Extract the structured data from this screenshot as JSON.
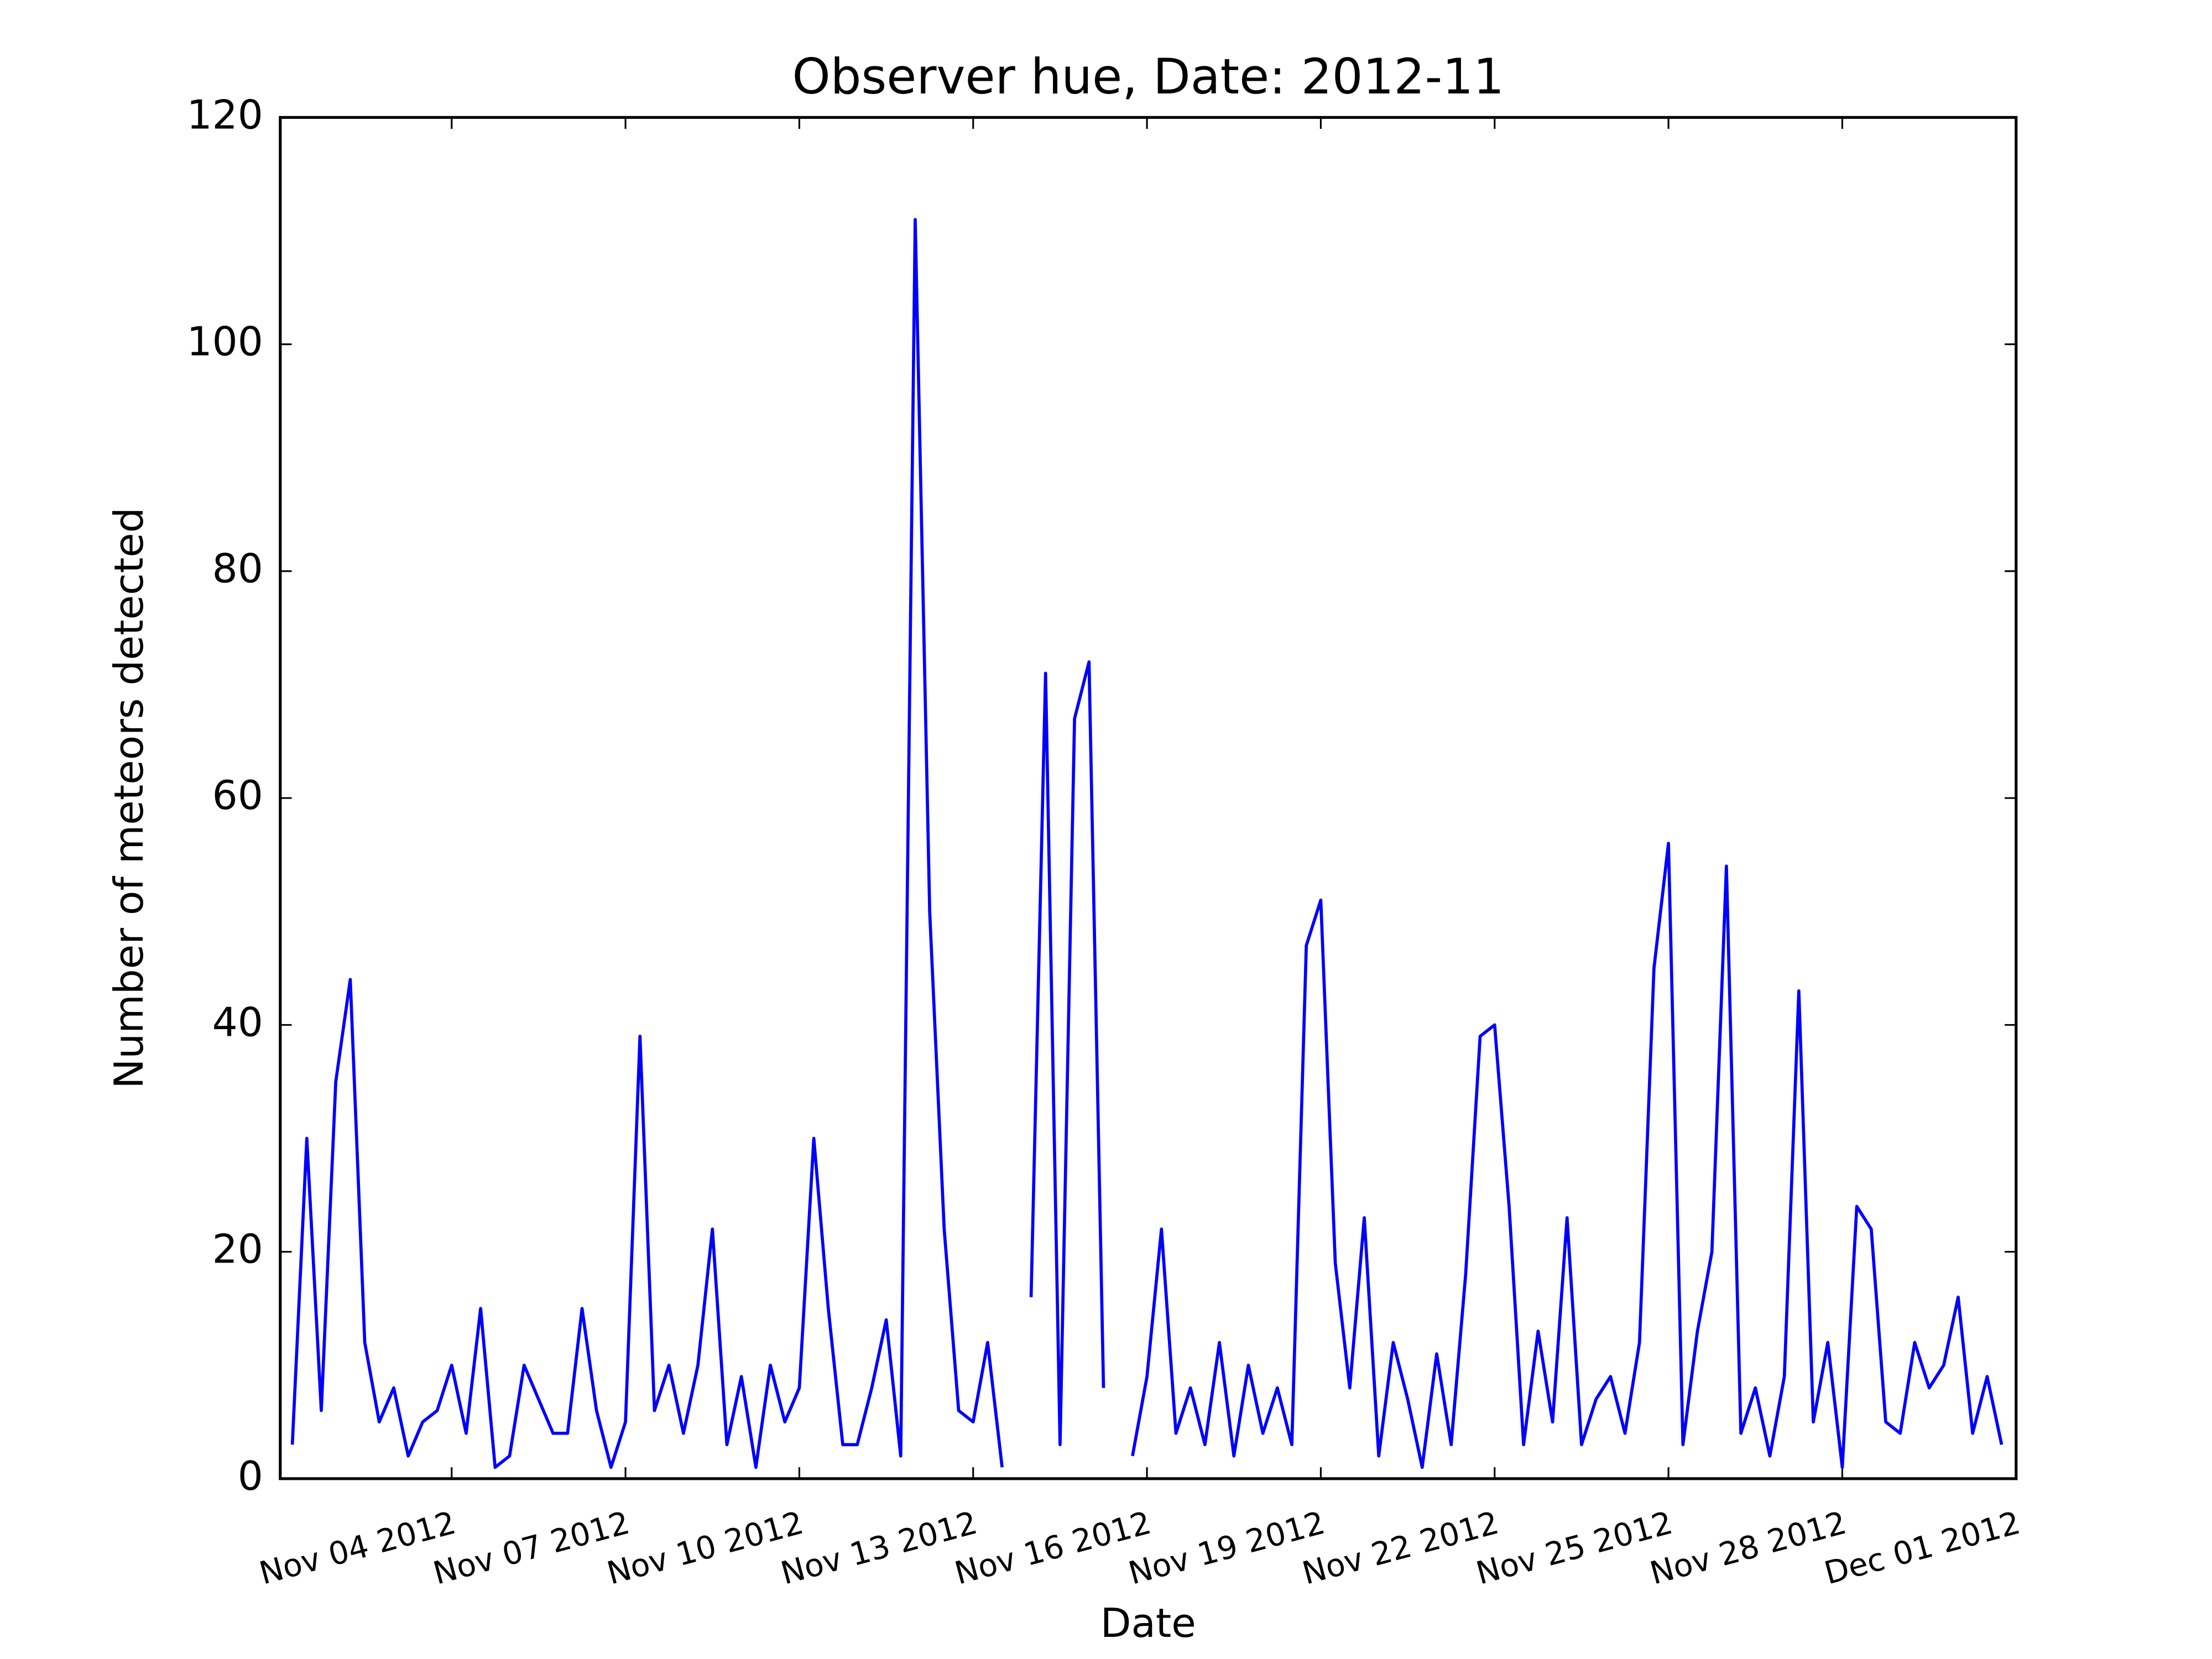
{
  "chart_data": {
    "type": "line",
    "title": "Observer hue, Date: 2012-11",
    "x_label": "Date",
    "y_label": "Number of meteors detected",
    "x": [
      "2012-11-01T06:00",
      "2012-11-01T12:00",
      "2012-11-01T18:00",
      "2012-11-02T00:00",
      "2012-11-02T06:00",
      "2012-11-02T12:00",
      "2012-11-02T18:00",
      "2012-11-03T00:00",
      "2012-11-03T06:00",
      "2012-11-03T12:00",
      "2012-11-03T18:00",
      "2012-11-04T00:00",
      "2012-11-04T06:00",
      "2012-11-04T12:00",
      "2012-11-04T18:00",
      "2012-11-05T00:00",
      "2012-11-05T06:00",
      "2012-11-05T12:00",
      "2012-11-05T18:00",
      "2012-11-06T00:00",
      "2012-11-06T06:00",
      "2012-11-06T12:00",
      "2012-11-06T18:00",
      "2012-11-07T00:00",
      "2012-11-07T06:00",
      "2012-11-07T12:00",
      "2012-11-07T18:00",
      "2012-11-08T00:00",
      "2012-11-08T06:00",
      "2012-11-08T12:00",
      "2012-11-08T18:00",
      "2012-11-09T00:00",
      "2012-11-09T06:00",
      "2012-11-09T12:00",
      "2012-11-09T18:00",
      "2012-11-10T00:00",
      "2012-11-10T06:00",
      "2012-11-10T12:00",
      "2012-11-10T18:00",
      "2012-11-11T00:00",
      "2012-11-11T06:00",
      "2012-11-11T12:00",
      "2012-11-11T18:00",
      "2012-11-12T00:00",
      "2012-11-12T06:00",
      "2012-11-12T12:00",
      "2012-11-12T18:00",
      "2012-11-13T00:00",
      "2012-11-13T06:00",
      "2012-11-13T12:00",
      "2012-11-13T18:00",
      "2012-11-14T00:00",
      "2012-11-14T06:00",
      "2012-11-14T12:00",
      "2012-11-14T18:00",
      "2012-11-15T00:00",
      "2012-11-15T06:00",
      "2012-11-15T12:00",
      "2012-11-15T18:00",
      "2012-11-16T00:00",
      "2012-11-16T06:00",
      "2012-11-16T12:00",
      "2012-11-16T18:00",
      "2012-11-17T00:00",
      "2012-11-17T06:00",
      "2012-11-17T12:00",
      "2012-11-17T18:00",
      "2012-11-18T00:00",
      "2012-11-18T06:00",
      "2012-11-18T12:00",
      "2012-11-18T18:00",
      "2012-11-19T00:00",
      "2012-11-19T06:00",
      "2012-11-19T12:00",
      "2012-11-19T18:00",
      "2012-11-20T00:00",
      "2012-11-20T06:00",
      "2012-11-20T12:00",
      "2012-11-20T18:00",
      "2012-11-21T00:00",
      "2012-11-21T06:00",
      "2012-11-21T12:00",
      "2012-11-21T18:00",
      "2012-11-22T00:00",
      "2012-11-22T06:00",
      "2012-11-22T12:00",
      "2012-11-22T18:00",
      "2012-11-23T00:00",
      "2012-11-23T06:00",
      "2012-11-23T12:00",
      "2012-11-23T18:00",
      "2012-11-24T00:00",
      "2012-11-24T06:00",
      "2012-11-24T12:00",
      "2012-11-24T18:00",
      "2012-11-25T00:00",
      "2012-11-25T06:00",
      "2012-11-25T12:00",
      "2012-11-25T18:00",
      "2012-11-26T00:00",
      "2012-11-26T06:00",
      "2012-11-26T12:00",
      "2012-11-26T18:00",
      "2012-11-27T00:00",
      "2012-11-27T06:00",
      "2012-11-27T12:00",
      "2012-11-27T18:00",
      "2012-11-28T00:00",
      "2012-11-28T06:00",
      "2012-11-28T12:00",
      "2012-11-28T18:00",
      "2012-11-29T00:00",
      "2012-11-29T06:00",
      "2012-11-29T12:00",
      "2012-11-29T18:00",
      "2012-11-30T00:00",
      "2012-11-30T06:00",
      "2012-11-30T12:00",
      "2012-11-30T18:00"
    ],
    "series": [
      {
        "color": "#0000ff",
        "values": [
          3,
          30,
          6,
          35,
          44,
          12,
          5,
          8,
          2,
          5,
          6,
          10,
          4,
          15,
          1,
          2,
          10,
          7,
          4,
          4,
          15,
          6,
          1,
          5,
          39,
          6,
          10,
          4,
          10,
          22,
          3,
          9,
          1,
          10,
          5,
          8,
          30,
          15,
          3,
          3,
          8,
          14,
          2,
          111,
          50,
          22,
          6,
          5,
          12,
          1,
          null,
          16,
          71,
          3,
          67,
          72,
          8,
          null,
          2,
          9,
          22,
          4,
          8,
          3,
          12,
          2,
          10,
          4,
          8,
          3,
          47,
          51,
          19,
          8,
          23,
          2,
          12,
          7,
          1,
          11,
          3,
          18,
          39,
          40,
          24,
          3,
          13,
          5,
          23,
          3,
          7,
          9,
          4,
          12,
          45,
          56,
          3,
          13,
          20,
          54,
          4,
          8,
          2,
          9,
          43,
          5,
          12,
          1,
          24,
          22,
          5,
          4,
          12,
          8,
          10,
          16,
          4,
          9,
          3
        ]
      }
    ],
    "xlim": [
      "2012-11-01T01:00",
      "2012-12-01T00:00"
    ],
    "xticks": [
      {
        "value": "2012-11-04",
        "label": "Nov 04 2012"
      },
      {
        "value": "2012-11-07",
        "label": "Nov 07 2012"
      },
      {
        "value": "2012-11-10",
        "label": "Nov 10 2012"
      },
      {
        "value": "2012-11-13",
        "label": "Nov 13 2012"
      },
      {
        "value": "2012-11-16",
        "label": "Nov 16 2012"
      },
      {
        "value": "2012-11-19",
        "label": "Nov 19 2012"
      },
      {
        "value": "2012-11-22",
        "label": "Nov 22 2012"
      },
      {
        "value": "2012-11-25",
        "label": "Nov 25 2012"
      },
      {
        "value": "2012-11-28",
        "label": "Nov 28 2012"
      },
      {
        "value": "2012-12-01",
        "label": "Dec 01 2012"
      }
    ],
    "ylim": [
      0,
      120
    ],
    "yticks": [
      0,
      20,
      40,
      60,
      80,
      100,
      120
    ],
    "grid": false
  }
}
